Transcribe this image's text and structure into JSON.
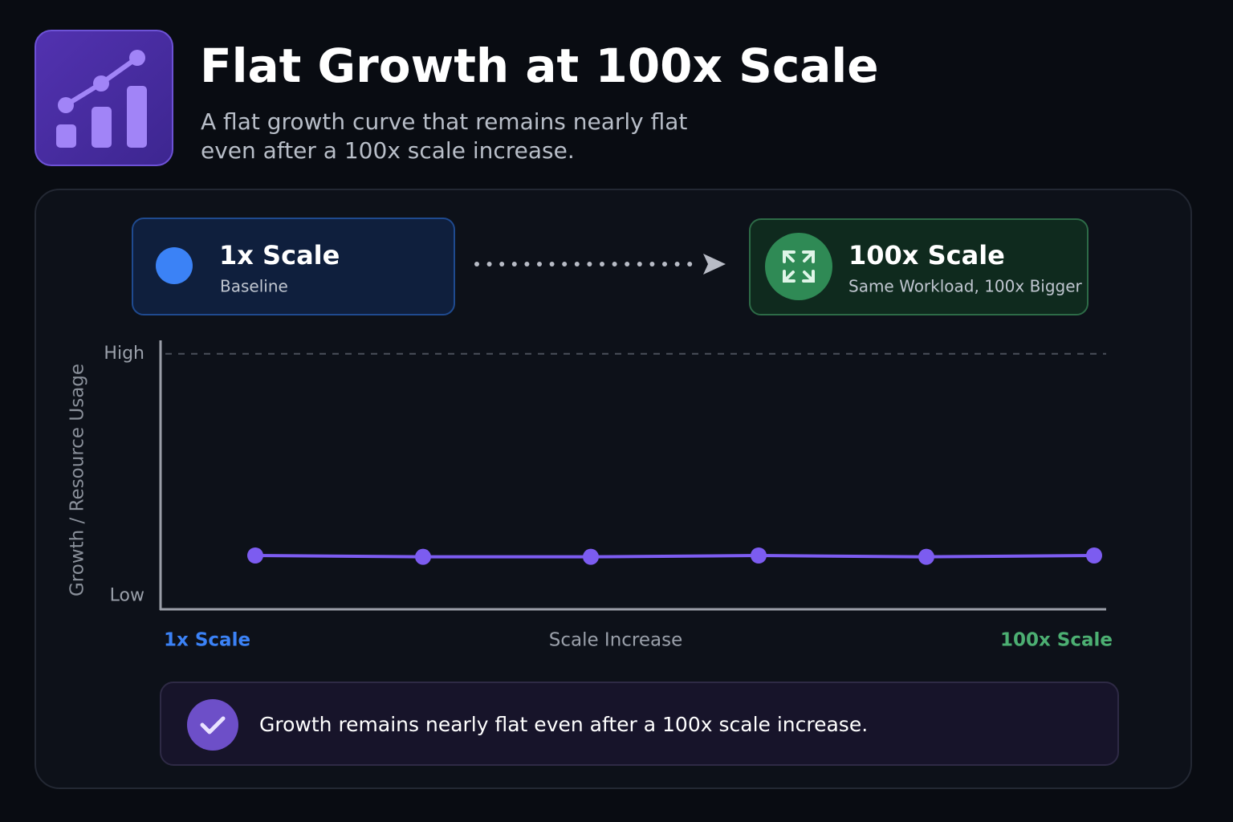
{
  "header": {
    "title": "Flat Growth at 100x Scale",
    "subtitle": [
      "A flat growth curve that remains nearly flat",
      "even after a 100x scale increase."
    ]
  },
  "cards": [
    {
      "title": "1x Scale",
      "subtitle": "Baseline"
    },
    {
      "title": "100x Scale",
      "subtitle": "Same Workload, 100x Bigger"
    }
  ],
  "note": "Growth remains nearly flat even after a 100x scale increase.",
  "chart_data": {
    "type": "line",
    "ylabel": "Growth / Resource Usage",
    "xlabel": "Scale Increase",
    "x_start_label": "1x Scale",
    "x_end_label": "100x Scale",
    "categories": [
      null,
      null,
      null,
      null,
      null,
      null
    ],
    "values": [
      20,
      19.5,
      19.5,
      20,
      19.5,
      20
    ],
    "color": "#7c5cf0",
    "ylim": [
      0,
      100
    ],
    "yticks": [
      {
        "value": 5,
        "label": "Low"
      },
      {
        "value": 95,
        "label": "High"
      }
    ]
  }
}
